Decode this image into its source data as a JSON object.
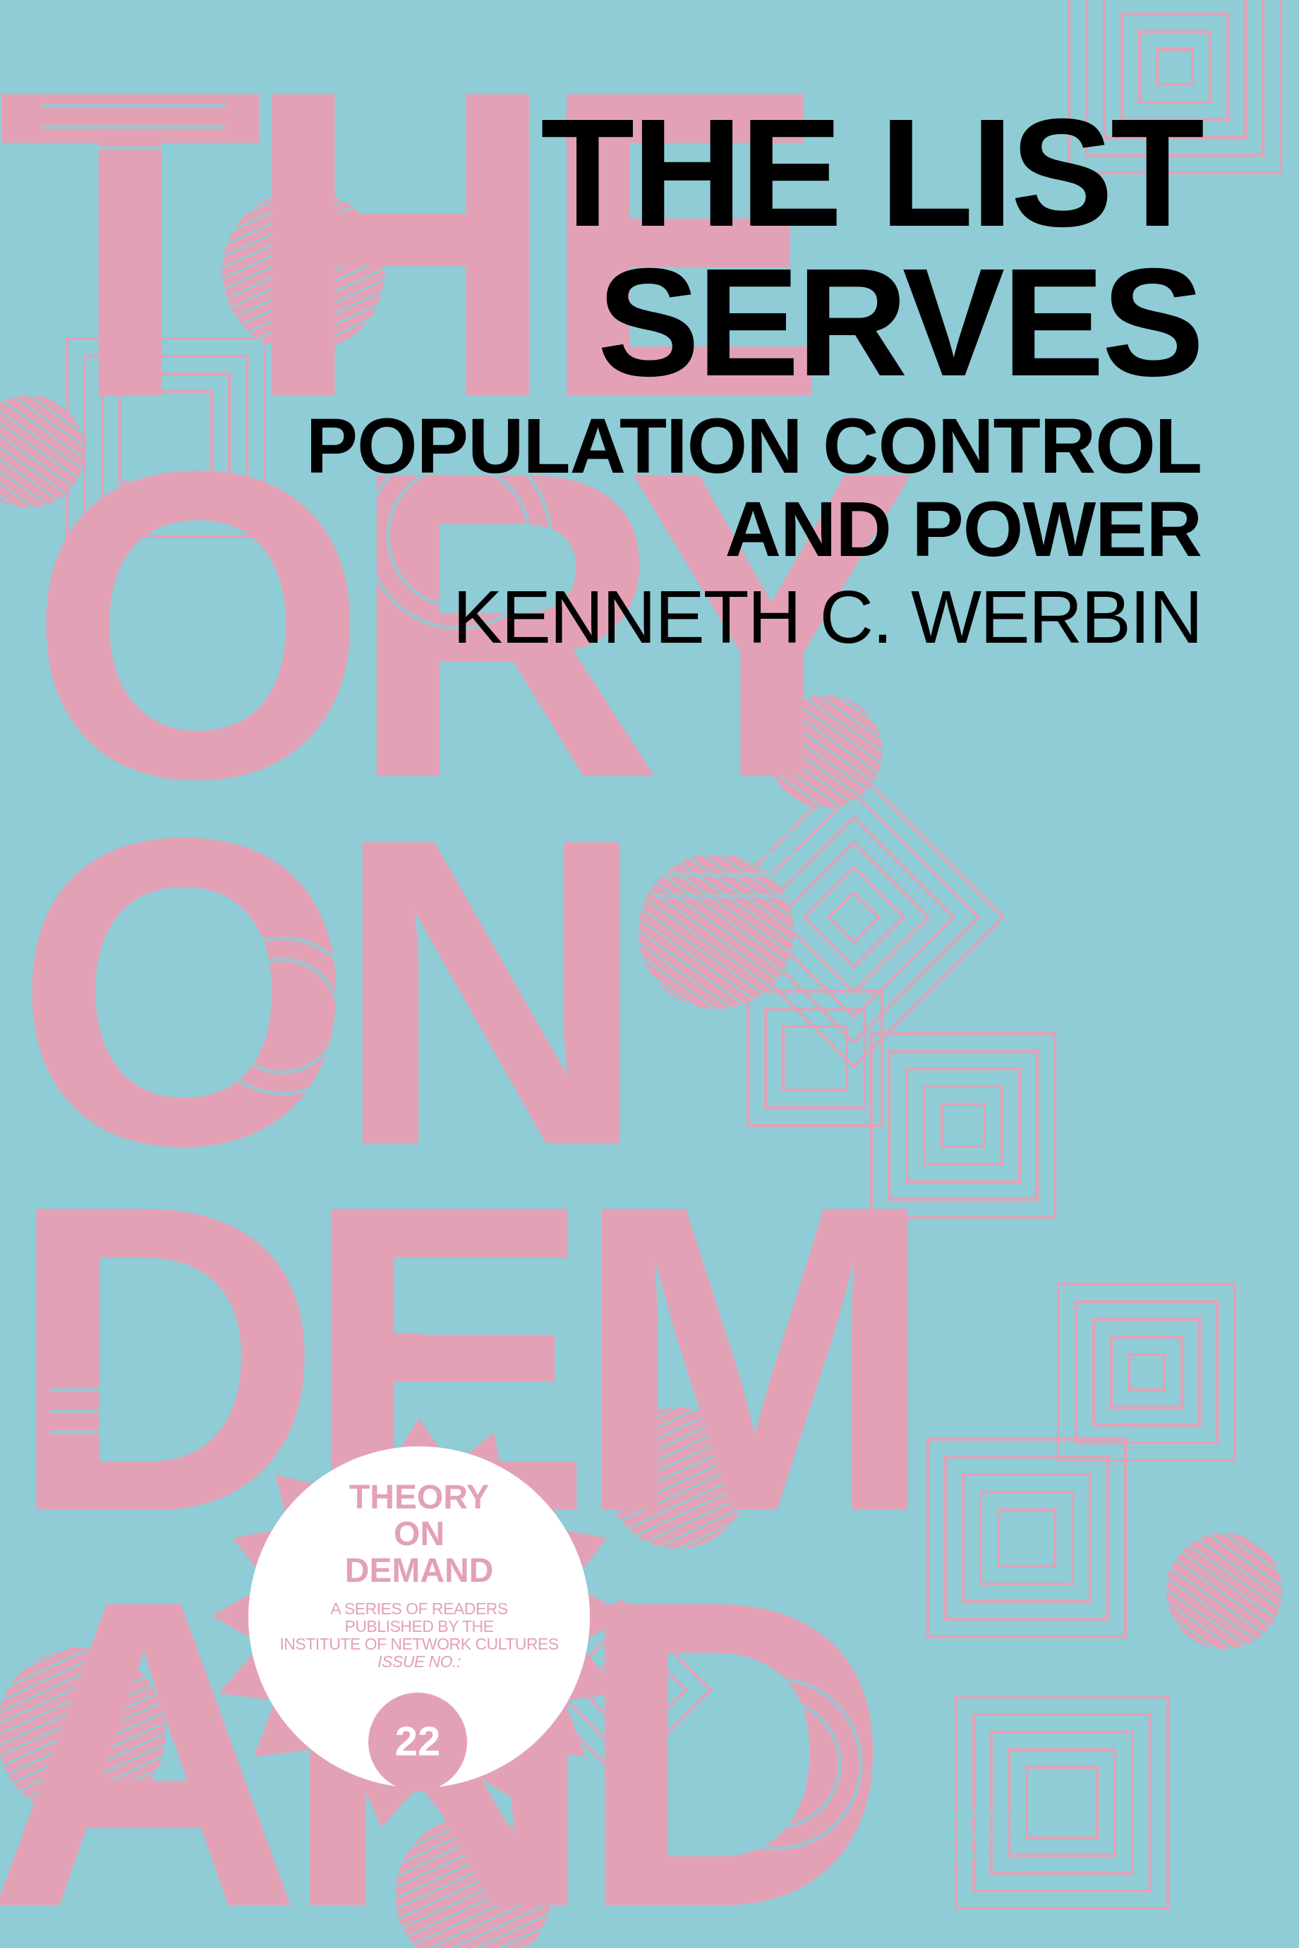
{
  "cover": {
    "background_color": "#8fccd6",
    "accent_color": "#e3a1b6",
    "background_text_letters": [
      "T",
      "H",
      "E",
      "O",
      "R",
      "Y",
      "O",
      "N",
      "D",
      "E",
      "M",
      "A",
      "N",
      "D"
    ]
  },
  "title": {
    "line1": "THE LIST",
    "line2": "SERVES"
  },
  "subtitle": {
    "line1": "POPULATION CONTROL",
    "line2": "AND POWER"
  },
  "author": "KENNETH C. WERBIN",
  "badge": {
    "series_line1": "THEORY",
    "series_line2": "ON",
    "series_line3": "DEMAND",
    "desc_line1": "A SERIES OF READERS",
    "desc_line2": "PUBLISHED BY THE",
    "desc_line3": "INSTITUTE OF NETWORK CULTURES",
    "issue_label": "ISSUE NO.:",
    "issue_number": "22"
  }
}
